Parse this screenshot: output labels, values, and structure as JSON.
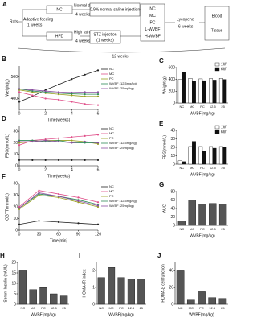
{
  "diagram": {
    "panel": "A",
    "rats": "Rats",
    "adaptive": "Adaptive feeding",
    "adaptive_time": "1 weeks",
    "nc": "NC",
    "normal_diet": "Normal diet",
    "normal_time": "4 weeks",
    "saline": "0.9% normal saline injection",
    "hfd": "HFD",
    "high_fat": "High fat diet",
    "high_fat_time": "4 weeks",
    "stz": "STZ injection",
    "stz_time": "(1 weeks)",
    "groups": [
      "NC",
      "MC",
      "PC",
      "L-WVBF",
      "H-WVBF"
    ],
    "lycopene": "Lycopene",
    "lycopene_time": "6 weeks",
    "blood": "Blood",
    "tissue": "Tissue",
    "total_time": "12 weeks"
  },
  "chart_data": [
    {
      "type": "line",
      "panel": "B",
      "x_label": "Time(weeks)",
      "y_label": "Weight(g)",
      "x": [
        0,
        1,
        2,
        3,
        4,
        5,
        6
      ],
      "xlim": [
        0,
        6
      ],
      "xticks": [
        0,
        2,
        4,
        6
      ],
      "ylim": [
        350,
        550
      ],
      "yticks": [
        400,
        500
      ],
      "series": [
        {
          "name": "NC",
          "color": "#222222",
          "values": [
            385,
            410,
            440,
            465,
            490,
            510,
            530
          ]
        },
        {
          "name": "MC",
          "color": "#e0508a",
          "values": [
            430,
            415,
            400,
            395,
            385,
            375,
            370
          ]
        },
        {
          "name": "PC",
          "color": "#9aa020",
          "values": [
            440,
            430,
            425,
            420,
            415,
            410,
            410
          ]
        },
        {
          "name": "WVBF (12.5mg/kg)",
          "color": "#2e8b57",
          "values": [
            445,
            435,
            430,
            425,
            422,
            420,
            420
          ]
        },
        {
          "name": "WVBF (25mg/kg)",
          "color": "#8a4fa0",
          "values": [
            445,
            440,
            435,
            430,
            428,
            430,
            430
          ]
        }
      ]
    },
    {
      "type": "bar",
      "panel": "C",
      "y_label": "Weight(g)",
      "x_label": "WVBF(mg/kg)",
      "categories": [
        "NC",
        "MC",
        "PC",
        "12.5",
        "25"
      ],
      "ylim": [
        0,
        600
      ],
      "yticks": [
        0,
        200,
        400,
        600
      ],
      "series": [
        {
          "name": "1W",
          "color": "#ffffff",
          "values": [
            400,
            420,
            410,
            415,
            420
          ]
        },
        {
          "name": "6W",
          "color": "#111111",
          "values": [
            520,
            370,
            380,
            390,
            400
          ]
        }
      ]
    },
    {
      "type": "line",
      "panel": "D",
      "x_label": "Time(weeks)",
      "y_label": "FBG(mmol/L)",
      "x": [
        0,
        1,
        2,
        3,
        4,
        5,
        6
      ],
      "xlim": [
        0,
        6
      ],
      "xticks": [
        0,
        2,
        4,
        6
      ],
      "ylim": [
        0,
        35
      ],
      "yticks": [
        0,
        10,
        20,
        30
      ],
      "series": [
        {
          "name": "NC",
          "color": "#222222",
          "values": [
            5,
            5,
            5,
            5,
            5,
            5,
            5
          ]
        },
        {
          "name": "MC",
          "color": "#e0508a",
          "values": [
            18,
            22,
            23,
            24,
            25,
            26,
            27
          ]
        },
        {
          "name": "PC",
          "color": "#9aa020",
          "values": [
            20,
            21,
            22,
            22,
            22,
            21,
            19
          ]
        },
        {
          "name": "WVBF (12.5mg/kg)",
          "color": "#2e8b57",
          "values": [
            22,
            22,
            21,
            22,
            20,
            20,
            20
          ]
        },
        {
          "name": "WVBF (25mg/kg)",
          "color": "#8a4fa0",
          "values": [
            21,
            21,
            22,
            21,
            20,
            21,
            20
          ]
        }
      ]
    },
    {
      "type": "bar",
      "panel": "E",
      "y_label": "FBG(mmol/L)",
      "x_label": "WVBF(mg/kg)",
      "categories": [
        "NC",
        "MC",
        "PC",
        "12.5",
        "25"
      ],
      "ylim": [
        0,
        40
      ],
      "yticks": [
        0,
        10,
        20,
        30,
        40
      ],
      "series": [
        {
          "name": "1W",
          "color": "#ffffff",
          "values": [
            4,
            21,
            21,
            21,
            21
          ]
        },
        {
          "name": "6W",
          "color": "#111111",
          "values": [
            3,
            27,
            16,
            19,
            20
          ]
        }
      ]
    },
    {
      "type": "line",
      "panel": "F",
      "x_label": "Time(min)",
      "y_label": "OGTT(mmol/L)",
      "x": [
        0,
        30,
        60,
        90,
        120
      ],
      "xlim": [
        0,
        120
      ],
      "xticks": [
        0,
        30,
        60,
        90,
        120
      ],
      "ylim": [
        0,
        40
      ],
      "yticks": [
        0,
        10,
        20,
        30,
        40
      ],
      "series": [
        {
          "name": "NC",
          "color": "#222222",
          "values": [
            5,
            8,
            7,
            6,
            5
          ]
        },
        {
          "name": "MC",
          "color": "#e0508a",
          "values": [
            20,
            34,
            31,
            28,
            24
          ]
        },
        {
          "name": "PC",
          "color": "#9aa020",
          "values": [
            18,
            30,
            28,
            24,
            20
          ]
        },
        {
          "name": "WVBF (12.5mg/kg)",
          "color": "#2e8b57",
          "values": [
            19,
            31,
            29,
            26,
            22
          ]
        },
        {
          "name": "WVBF (25mg/kg)",
          "color": "#8a4fa0",
          "values": [
            19,
            32,
            29,
            25,
            21
          ]
        }
      ]
    },
    {
      "type": "bar",
      "panel": "G",
      "y_label": "AUC",
      "x_label": "WVBF(mg/kg)",
      "categories": [
        "NC",
        "MC",
        "PC",
        "12.5",
        "25"
      ],
      "ylim": [
        0,
        80
      ],
      "yticks": [
        0,
        20,
        40,
        60,
        80
      ],
      "color": "#555555",
      "values": [
        10,
        60,
        50,
        52,
        50
      ]
    },
    {
      "type": "bar",
      "panel": "H",
      "y_label": "Serum Insulin (mU/L)",
      "x_label": "WVBF(mg/kg)",
      "categories": [
        "NC",
        "MC",
        "PC",
        "12.5",
        "25"
      ],
      "ylim": [
        0,
        20
      ],
      "yticks": [
        0,
        5,
        10,
        15,
        20
      ],
      "color": "#555555",
      "values": [
        16,
        7,
        8,
        5,
        4
      ]
    },
    {
      "type": "bar",
      "panel": "I",
      "y_label": "HOMA-IR index",
      "x_label": "WVBF(mg/kg)",
      "categories": [
        "NC",
        "MC",
        "PC",
        "12.5",
        "25"
      ],
      "ylim": [
        0,
        2.5
      ],
      "yticks": [
        0,
        1,
        2
      ],
      "color": "#555555",
      "values": [
        1.6,
        2.2,
        1.6,
        1.5,
        1.5
      ]
    },
    {
      "type": "bar",
      "panel": "J",
      "y_label": "HOMA-β cell function",
      "x_label": "WVBF(mg/kg)",
      "categories": [
        "NC",
        "MC",
        "PC",
        "12.5",
        "25"
      ],
      "ylim": [
        0,
        50
      ],
      "yticks": [
        0,
        20,
        40
      ],
      "color": "#555555",
      "values": [
        40,
        5,
        15,
        8,
        7
      ]
    }
  ]
}
